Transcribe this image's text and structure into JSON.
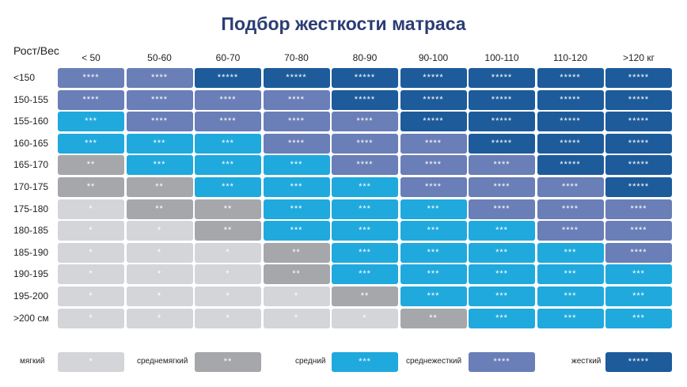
{
  "title": "Подбор жесткости матраса",
  "table": {
    "corner": "Рост/Вес",
    "columns": [
      "< 50",
      "50-60",
      "60-70",
      "70-80",
      "80-90",
      "90-100",
      "100-110",
      "110-120",
      ">120 кг"
    ],
    "rows": [
      {
        "label": "<150",
        "cells": [
          "****",
          "****",
          "*****",
          "*****",
          "*****",
          "*****",
          "*****",
          "*****",
          "*****"
        ]
      },
      {
        "label": "150-155",
        "cells": [
          "****",
          "****",
          "****",
          "****",
          "*****",
          "*****",
          "*****",
          "*****",
          "*****"
        ]
      },
      {
        "label": "155-160",
        "cells": [
          "***",
          "****",
          "****",
          "****",
          "****",
          "*****",
          "*****",
          "*****",
          "*****"
        ]
      },
      {
        "label": "160-165",
        "cells": [
          "***",
          "***",
          "***",
          "****",
          "****",
          "****",
          "*****",
          "*****",
          "*****"
        ]
      },
      {
        "label": "165-170",
        "cells": [
          "**",
          "***",
          "***",
          "***",
          "****",
          "****",
          "****",
          "*****",
          "*****"
        ]
      },
      {
        "label": "170-175",
        "cells": [
          "**",
          "**",
          "***",
          "***",
          "***",
          "****",
          "****",
          "****",
          "*****"
        ]
      },
      {
        "label": "175-180",
        "cells": [
          "*",
          "**",
          "**",
          "***",
          "***",
          "***",
          "****",
          "****",
          "****"
        ]
      },
      {
        "label": "180-185",
        "cells": [
          "*",
          "*",
          "**",
          "***",
          "***",
          "***",
          "***",
          "****",
          "****"
        ]
      },
      {
        "label": "185-190",
        "cells": [
          "*",
          "*",
          "*",
          "**",
          "***",
          "***",
          "***",
          "***",
          "****"
        ]
      },
      {
        "label": "190-195",
        "cells": [
          "*",
          "*",
          "*",
          "**",
          "***",
          "***",
          "***",
          "***",
          "***"
        ]
      },
      {
        "label": "195-200",
        "cells": [
          "*",
          "*",
          "*",
          "*",
          "**",
          "***",
          "***",
          "***",
          "***"
        ]
      },
      {
        "label": ">200 см",
        "cells": [
          "*",
          "*",
          "*",
          "*",
          "*",
          "**",
          "***",
          "***",
          "***"
        ]
      }
    ]
  },
  "legend": [
    {
      "label": "мягкий",
      "stars": "*",
      "color": "#d3d5d8"
    },
    {
      "label": "среднемягкий",
      "stars": "**",
      "color": "#a5a7aa"
    },
    {
      "label": "средний",
      "stars": "***",
      "color": "#20a9dd"
    },
    {
      "label": "среднежесткий",
      "stars": "****",
      "color": "#6a7eb7"
    },
    {
      "label": "жесткий",
      "stars": "*****",
      "color": "#1d5b9b"
    }
  ]
}
